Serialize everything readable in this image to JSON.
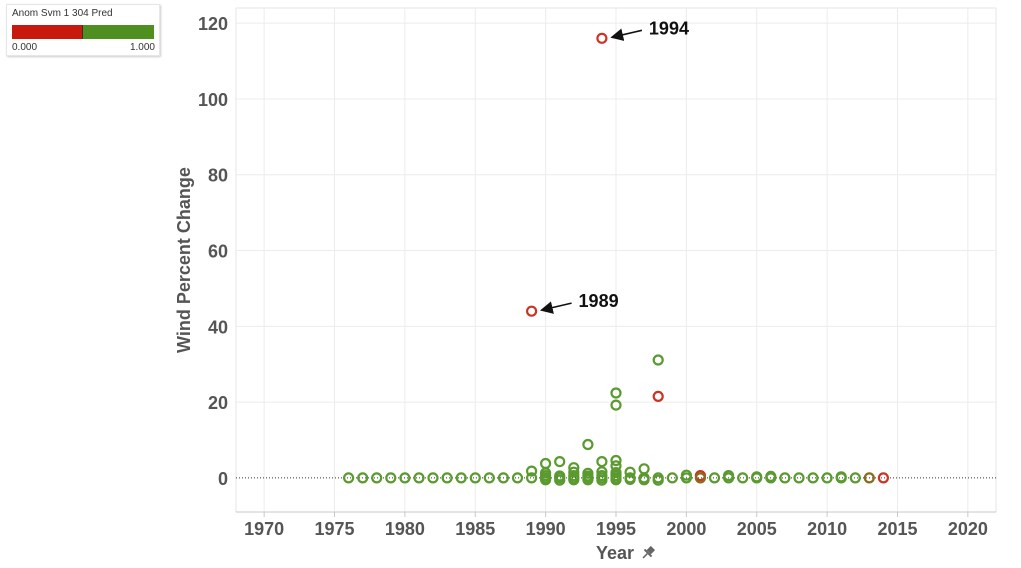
{
  "legend": {
    "title": "Anom Svm 1 304 Pred",
    "min_label": "0.000",
    "max_label": "1.000",
    "low_color": "#c8190d",
    "high_color": "#4e8f1f",
    "split": 0.5
  },
  "chart_data": {
    "type": "scatter",
    "xlabel": "Year",
    "ylabel": "Wind Percent Change",
    "xlim": [
      1968,
      2022
    ],
    "ylim": [
      -9,
      124
    ],
    "xticks": [
      1970,
      1975,
      1980,
      1985,
      1990,
      1995,
      2000,
      2005,
      2010,
      2015,
      2020
    ],
    "yticks": [
      0,
      20,
      40,
      60,
      80,
      100,
      120
    ],
    "grid": true,
    "zero_line": 0,
    "colors": {
      "normal": "#5a9a2e",
      "anomaly": "#cc3322",
      "mixed": "#8a6a1e"
    },
    "series": [
      {
        "class": "normal",
        "points": [
          [
            1976,
            0
          ],
          [
            1977,
            0
          ],
          [
            1978,
            0
          ],
          [
            1979,
            0
          ],
          [
            1980,
            0
          ],
          [
            1981,
            0
          ],
          [
            1982,
            0
          ],
          [
            1983,
            0
          ],
          [
            1984,
            0
          ],
          [
            1985,
            0
          ],
          [
            1986,
            0
          ],
          [
            1987,
            0
          ],
          [
            1988,
            0
          ],
          [
            1989,
            0
          ],
          [
            1989,
            1.8
          ],
          [
            1990,
            0
          ],
          [
            1990,
            -0.5
          ],
          [
            1990,
            0.6
          ],
          [
            1990,
            1.3
          ],
          [
            1990,
            3.8
          ],
          [
            1991,
            0
          ],
          [
            1991,
            -0.6
          ],
          [
            1991,
            0.5
          ],
          [
            1991,
            4.3
          ],
          [
            1992,
            0
          ],
          [
            1992,
            -0.5
          ],
          [
            1992,
            0.6
          ],
          [
            1992,
            1.5
          ],
          [
            1992,
            2.7
          ],
          [
            1993,
            0
          ],
          [
            1993,
            -0.5
          ],
          [
            1993,
            0.5
          ],
          [
            1993,
            1.2
          ],
          [
            1993,
            8.8
          ],
          [
            1994,
            0
          ],
          [
            1994,
            -0.6
          ],
          [
            1994,
            0.6
          ],
          [
            1994,
            1.6
          ],
          [
            1994,
            4.3
          ],
          [
            1995,
            0
          ],
          [
            1995,
            -0.5
          ],
          [
            1995,
            0.6
          ],
          [
            1995,
            1.4
          ],
          [
            1995,
            3.2
          ],
          [
            1995,
            4.6
          ],
          [
            1995,
            19.2
          ],
          [
            1995,
            22.4
          ],
          [
            1996,
            0
          ],
          [
            1996,
            -0.4
          ],
          [
            1996,
            1.5
          ],
          [
            1997,
            0
          ],
          [
            1997,
            -0.5
          ],
          [
            1997,
            2.4
          ],
          [
            1998,
            0
          ],
          [
            1998,
            -0.6
          ],
          [
            1998,
            31.1
          ],
          [
            1999,
            0
          ],
          [
            2000,
            0
          ],
          [
            2000,
            0.7
          ],
          [
            2002,
            0
          ],
          [
            2003,
            0
          ],
          [
            2003,
            0.6
          ],
          [
            2004,
            0
          ],
          [
            2005,
            0
          ],
          [
            2005,
            0.3
          ],
          [
            2006,
            0
          ],
          [
            2006,
            0.4
          ],
          [
            2007,
            0
          ],
          [
            2008,
            0
          ],
          [
            2009,
            0
          ],
          [
            2010,
            0
          ],
          [
            2011,
            0
          ],
          [
            2011,
            0.3
          ],
          [
            2012,
            0
          ]
        ]
      },
      {
        "class": "anomaly",
        "points": [
          [
            1989,
            44
          ],
          [
            1994,
            116
          ],
          [
            1998,
            21.5
          ],
          [
            2001,
            0.6
          ],
          [
            2014,
            0
          ]
        ]
      },
      {
        "class": "mixed",
        "points": [
          [
            2001,
            0
          ],
          [
            2013,
            0
          ]
        ]
      }
    ],
    "annotations": [
      {
        "text": "1994",
        "x": 1994,
        "y": 116
      },
      {
        "text": "1989",
        "x": 1989,
        "y": 44
      }
    ]
  }
}
